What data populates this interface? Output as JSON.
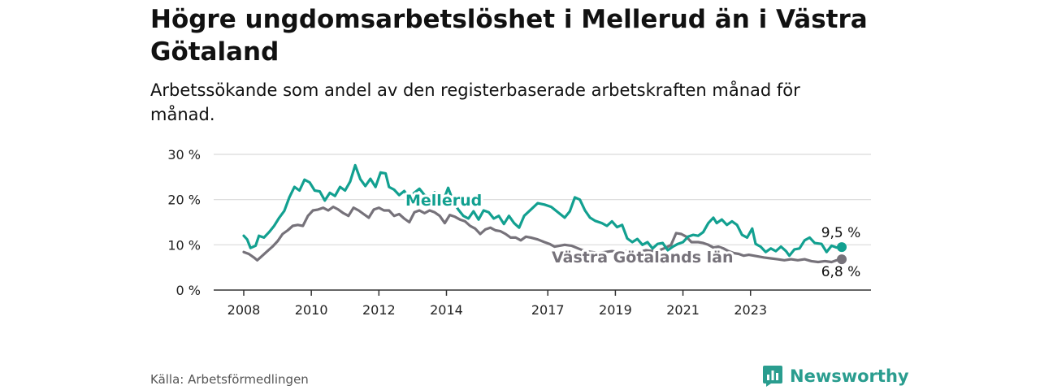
{
  "header": {
    "title": "Högre ungdomsarbetslöshet i Mellerud än i Västra Götaland",
    "subtitle": "Arbetssökande som andel av den registerbaserade arbetskraften månad för månad."
  },
  "footer": {
    "source": "Källa: Arbetsförmedlingen",
    "brand": "Newsworthy",
    "brand_icon": "bar-chart-logo-icon"
  },
  "colors": {
    "mellerud": "#12a090",
    "vgl": "#76727a",
    "grid": "#d9d9d9",
    "axis": "#333333"
  },
  "chart_data": {
    "type": "line",
    "title": "Högre ungdomsarbetslöshet i Mellerud än i Västra Götaland",
    "xlabel": "",
    "ylabel": "",
    "ylim": [
      0,
      30
    ],
    "yticks": [
      0,
      10,
      20,
      30
    ],
    "ytick_labels": [
      "0 %",
      "10 %",
      "20 %",
      "30 %"
    ],
    "xticks": [
      2008,
      2010,
      2012,
      2014,
      2017,
      2019,
      2021,
      2023
    ],
    "xtick_labels": [
      "2008",
      "2010",
      "2012",
      "2014",
      "2017",
      "2019",
      "2021",
      "2023"
    ],
    "grid": true,
    "series": [
      {
        "name": "Mellerud",
        "label_text": "Mellerud",
        "end_label": "9,5 %",
        "points": [
          [
            2008.0,
            12.0
          ],
          [
            2008.1,
            11.2
          ],
          [
            2008.2,
            9.3
          ],
          [
            2008.35,
            9.8
          ],
          [
            2008.45,
            12.0
          ],
          [
            2008.6,
            11.6
          ],
          [
            2008.75,
            12.8
          ],
          [
            2008.9,
            14.2
          ],
          [
            2009.05,
            16.0
          ],
          [
            2009.2,
            17.5
          ],
          [
            2009.35,
            20.5
          ],
          [
            2009.5,
            22.8
          ],
          [
            2009.65,
            22.0
          ],
          [
            2009.8,
            24.4
          ],
          [
            2009.95,
            23.8
          ],
          [
            2010.1,
            22.0
          ],
          [
            2010.25,
            21.8
          ],
          [
            2010.4,
            19.8
          ],
          [
            2010.55,
            21.5
          ],
          [
            2010.7,
            20.8
          ],
          [
            2010.85,
            22.8
          ],
          [
            2011.0,
            22.0
          ],
          [
            2011.15,
            24.0
          ],
          [
            2011.3,
            27.6
          ],
          [
            2011.45,
            24.5
          ],
          [
            2011.6,
            23.0
          ],
          [
            2011.75,
            24.6
          ],
          [
            2011.9,
            22.8
          ],
          [
            2012.05,
            26.0
          ],
          [
            2012.2,
            25.8
          ],
          [
            2012.3,
            22.8
          ],
          [
            2012.45,
            22.2
          ],
          [
            2012.6,
            21.0
          ],
          [
            2012.75,
            21.9
          ],
          [
            2012.9,
            20.4
          ],
          [
            2013.05,
            21.5
          ],
          [
            2013.2,
            22.4
          ],
          [
            2013.35,
            21.0
          ],
          [
            2013.5,
            20.6
          ],
          [
            2013.65,
            21.6
          ],
          [
            2013.8,
            20.0
          ],
          [
            2013.95,
            20.6
          ],
          [
            2014.05,
            22.6
          ],
          [
            2014.2,
            19.6
          ],
          [
            2014.35,
            17.8
          ],
          [
            2014.5,
            16.4
          ],
          [
            2014.65,
            15.8
          ],
          [
            2014.8,
            17.4
          ],
          [
            2014.95,
            15.6
          ],
          [
            2015.1,
            17.6
          ],
          [
            2015.25,
            17.2
          ],
          [
            2015.4,
            15.8
          ],
          [
            2015.55,
            16.4
          ],
          [
            2015.7,
            14.6
          ],
          [
            2015.85,
            16.4
          ],
          [
            2016.0,
            14.8
          ],
          [
            2016.15,
            13.8
          ],
          [
            2016.3,
            16.4
          ],
          [
            2016.5,
            17.8
          ],
          [
            2016.7,
            19.2
          ],
          [
            2016.9,
            18.9
          ],
          [
            2017.1,
            18.4
          ],
          [
            2017.3,
            17.2
          ],
          [
            2017.5,
            16.0
          ],
          [
            2017.65,
            17.4
          ],
          [
            2017.8,
            20.5
          ],
          [
            2017.95,
            20.0
          ],
          [
            2018.1,
            17.6
          ],
          [
            2018.25,
            16.0
          ],
          [
            2018.4,
            15.3
          ],
          [
            2018.6,
            14.8
          ],
          [
            2018.75,
            14.2
          ],
          [
            2018.9,
            15.2
          ],
          [
            2019.05,
            13.9
          ],
          [
            2019.2,
            14.4
          ],
          [
            2019.35,
            11.4
          ],
          [
            2019.5,
            10.6
          ],
          [
            2019.65,
            11.3
          ],
          [
            2019.8,
            10.0
          ],
          [
            2019.95,
            10.6
          ],
          [
            2020.1,
            9.2
          ],
          [
            2020.25,
            10.2
          ],
          [
            2020.4,
            10.4
          ],
          [
            2020.55,
            8.8
          ],
          [
            2020.7,
            9.6
          ],
          [
            2020.85,
            10.2
          ],
          [
            2021.0,
            10.6
          ],
          [
            2021.15,
            11.8
          ],
          [
            2021.3,
            12.2
          ],
          [
            2021.45,
            12.0
          ],
          [
            2021.6,
            12.8
          ],
          [
            2021.75,
            14.8
          ],
          [
            2021.9,
            16.0
          ],
          [
            2022.0,
            14.8
          ],
          [
            2022.15,
            15.6
          ],
          [
            2022.3,
            14.4
          ],
          [
            2022.45,
            15.2
          ],
          [
            2022.6,
            14.4
          ],
          [
            2022.75,
            12.2
          ],
          [
            2022.9,
            11.6
          ],
          [
            2023.05,
            13.6
          ],
          [
            2023.15,
            10.2
          ],
          [
            2023.3,
            9.6
          ],
          [
            2023.45,
            8.4
          ],
          [
            2023.6,
            9.2
          ],
          [
            2023.75,
            8.6
          ],
          [
            2023.9,
            9.6
          ],
          [
            2024.05,
            8.6
          ],
          [
            2024.15,
            7.6
          ],
          [
            2024.3,
            9.0
          ],
          [
            2024.45,
            9.2
          ],
          [
            2024.6,
            11.0
          ],
          [
            2024.75,
            11.6
          ],
          [
            2024.9,
            10.4
          ],
          [
            2025.1,
            10.2
          ],
          [
            2025.25,
            8.4
          ],
          [
            2025.4,
            9.8
          ],
          [
            2025.55,
            9.4
          ],
          [
            2025.7,
            9.5
          ]
        ]
      },
      {
        "name": "Västra Götalands län",
        "label_text": "Västra Götalands län",
        "end_label": "6,8 %",
        "points": [
          [
            2008.0,
            8.4
          ],
          [
            2008.15,
            8.0
          ],
          [
            2008.3,
            7.2
          ],
          [
            2008.4,
            6.6
          ],
          [
            2008.55,
            7.6
          ],
          [
            2008.7,
            8.6
          ],
          [
            2008.85,
            9.6
          ],
          [
            2009.0,
            10.8
          ],
          [
            2009.15,
            12.4
          ],
          [
            2009.3,
            13.2
          ],
          [
            2009.45,
            14.2
          ],
          [
            2009.6,
            14.4
          ],
          [
            2009.75,
            14.2
          ],
          [
            2009.9,
            16.4
          ],
          [
            2010.05,
            17.6
          ],
          [
            2010.2,
            17.8
          ],
          [
            2010.35,
            18.2
          ],
          [
            2010.5,
            17.6
          ],
          [
            2010.65,
            18.4
          ],
          [
            2010.8,
            17.8
          ],
          [
            2010.95,
            17.0
          ],
          [
            2011.1,
            16.4
          ],
          [
            2011.25,
            18.2
          ],
          [
            2011.4,
            17.6
          ],
          [
            2011.55,
            16.8
          ],
          [
            2011.7,
            16.0
          ],
          [
            2011.85,
            17.8
          ],
          [
            2012.0,
            18.2
          ],
          [
            2012.15,
            17.6
          ],
          [
            2012.3,
            17.6
          ],
          [
            2012.45,
            16.4
          ],
          [
            2012.6,
            16.8
          ],
          [
            2012.75,
            15.8
          ],
          [
            2012.9,
            15.0
          ],
          [
            2013.05,
            17.2
          ],
          [
            2013.2,
            17.6
          ],
          [
            2013.35,
            17.0
          ],
          [
            2013.5,
            17.6
          ],
          [
            2013.65,
            17.2
          ],
          [
            2013.8,
            16.4
          ],
          [
            2013.95,
            14.8
          ],
          [
            2014.1,
            16.6
          ],
          [
            2014.25,
            16.2
          ],
          [
            2014.4,
            15.6
          ],
          [
            2014.55,
            15.2
          ],
          [
            2014.7,
            14.2
          ],
          [
            2014.85,
            13.6
          ],
          [
            2015.0,
            12.4
          ],
          [
            2015.15,
            13.4
          ],
          [
            2015.3,
            13.8
          ],
          [
            2015.45,
            13.2
          ],
          [
            2015.6,
            13.0
          ],
          [
            2015.75,
            12.4
          ],
          [
            2015.9,
            11.6
          ],
          [
            2016.05,
            11.6
          ],
          [
            2016.2,
            11.0
          ],
          [
            2016.35,
            11.8
          ],
          [
            2016.5,
            11.6
          ],
          [
            2016.7,
            11.2
          ],
          [
            2016.9,
            10.6
          ],
          [
            2017.05,
            10.2
          ],
          [
            2017.2,
            9.6
          ],
          [
            2017.35,
            9.8
          ],
          [
            2017.5,
            10.0
          ],
          [
            2017.7,
            9.8
          ],
          [
            2017.9,
            9.2
          ],
          [
            2018.1,
            8.6
          ],
          [
            2018.3,
            8.4
          ],
          [
            2018.5,
            8.2
          ],
          [
            2018.7,
            8.4
          ],
          [
            2018.9,
            8.6
          ],
          [
            2019.1,
            8.4
          ],
          [
            2019.3,
            8.6
          ],
          [
            2019.5,
            8.6
          ],
          [
            2019.7,
            8.4
          ],
          [
            2019.9,
            8.8
          ],
          [
            2020.1,
            8.6
          ],
          [
            2020.3,
            8.8
          ],
          [
            2020.5,
            9.4
          ],
          [
            2020.65,
            10.0
          ],
          [
            2020.8,
            12.6
          ],
          [
            2020.95,
            12.4
          ],
          [
            2021.1,
            11.8
          ],
          [
            2021.25,
            10.6
          ],
          [
            2021.45,
            10.6
          ],
          [
            2021.6,
            10.4
          ],
          [
            2021.75,
            10.0
          ],
          [
            2021.9,
            9.4
          ],
          [
            2022.05,
            9.6
          ],
          [
            2022.2,
            9.2
          ],
          [
            2022.35,
            8.6
          ],
          [
            2022.5,
            8.2
          ],
          [
            2022.65,
            8.0
          ],
          [
            2022.8,
            7.6
          ],
          [
            2022.95,
            7.8
          ],
          [
            2023.1,
            7.6
          ],
          [
            2023.25,
            7.4
          ],
          [
            2023.4,
            7.2
          ],
          [
            2023.6,
            7.0
          ],
          [
            2023.8,
            6.8
          ],
          [
            2024.0,
            6.6
          ],
          [
            2024.2,
            6.8
          ],
          [
            2024.4,
            6.6
          ],
          [
            2024.6,
            6.8
          ],
          [
            2024.8,
            6.4
          ],
          [
            2025.0,
            6.2
          ],
          [
            2025.2,
            6.4
          ],
          [
            2025.4,
            6.2
          ],
          [
            2025.55,
            6.6
          ],
          [
            2025.7,
            6.8
          ]
        ]
      }
    ]
  }
}
